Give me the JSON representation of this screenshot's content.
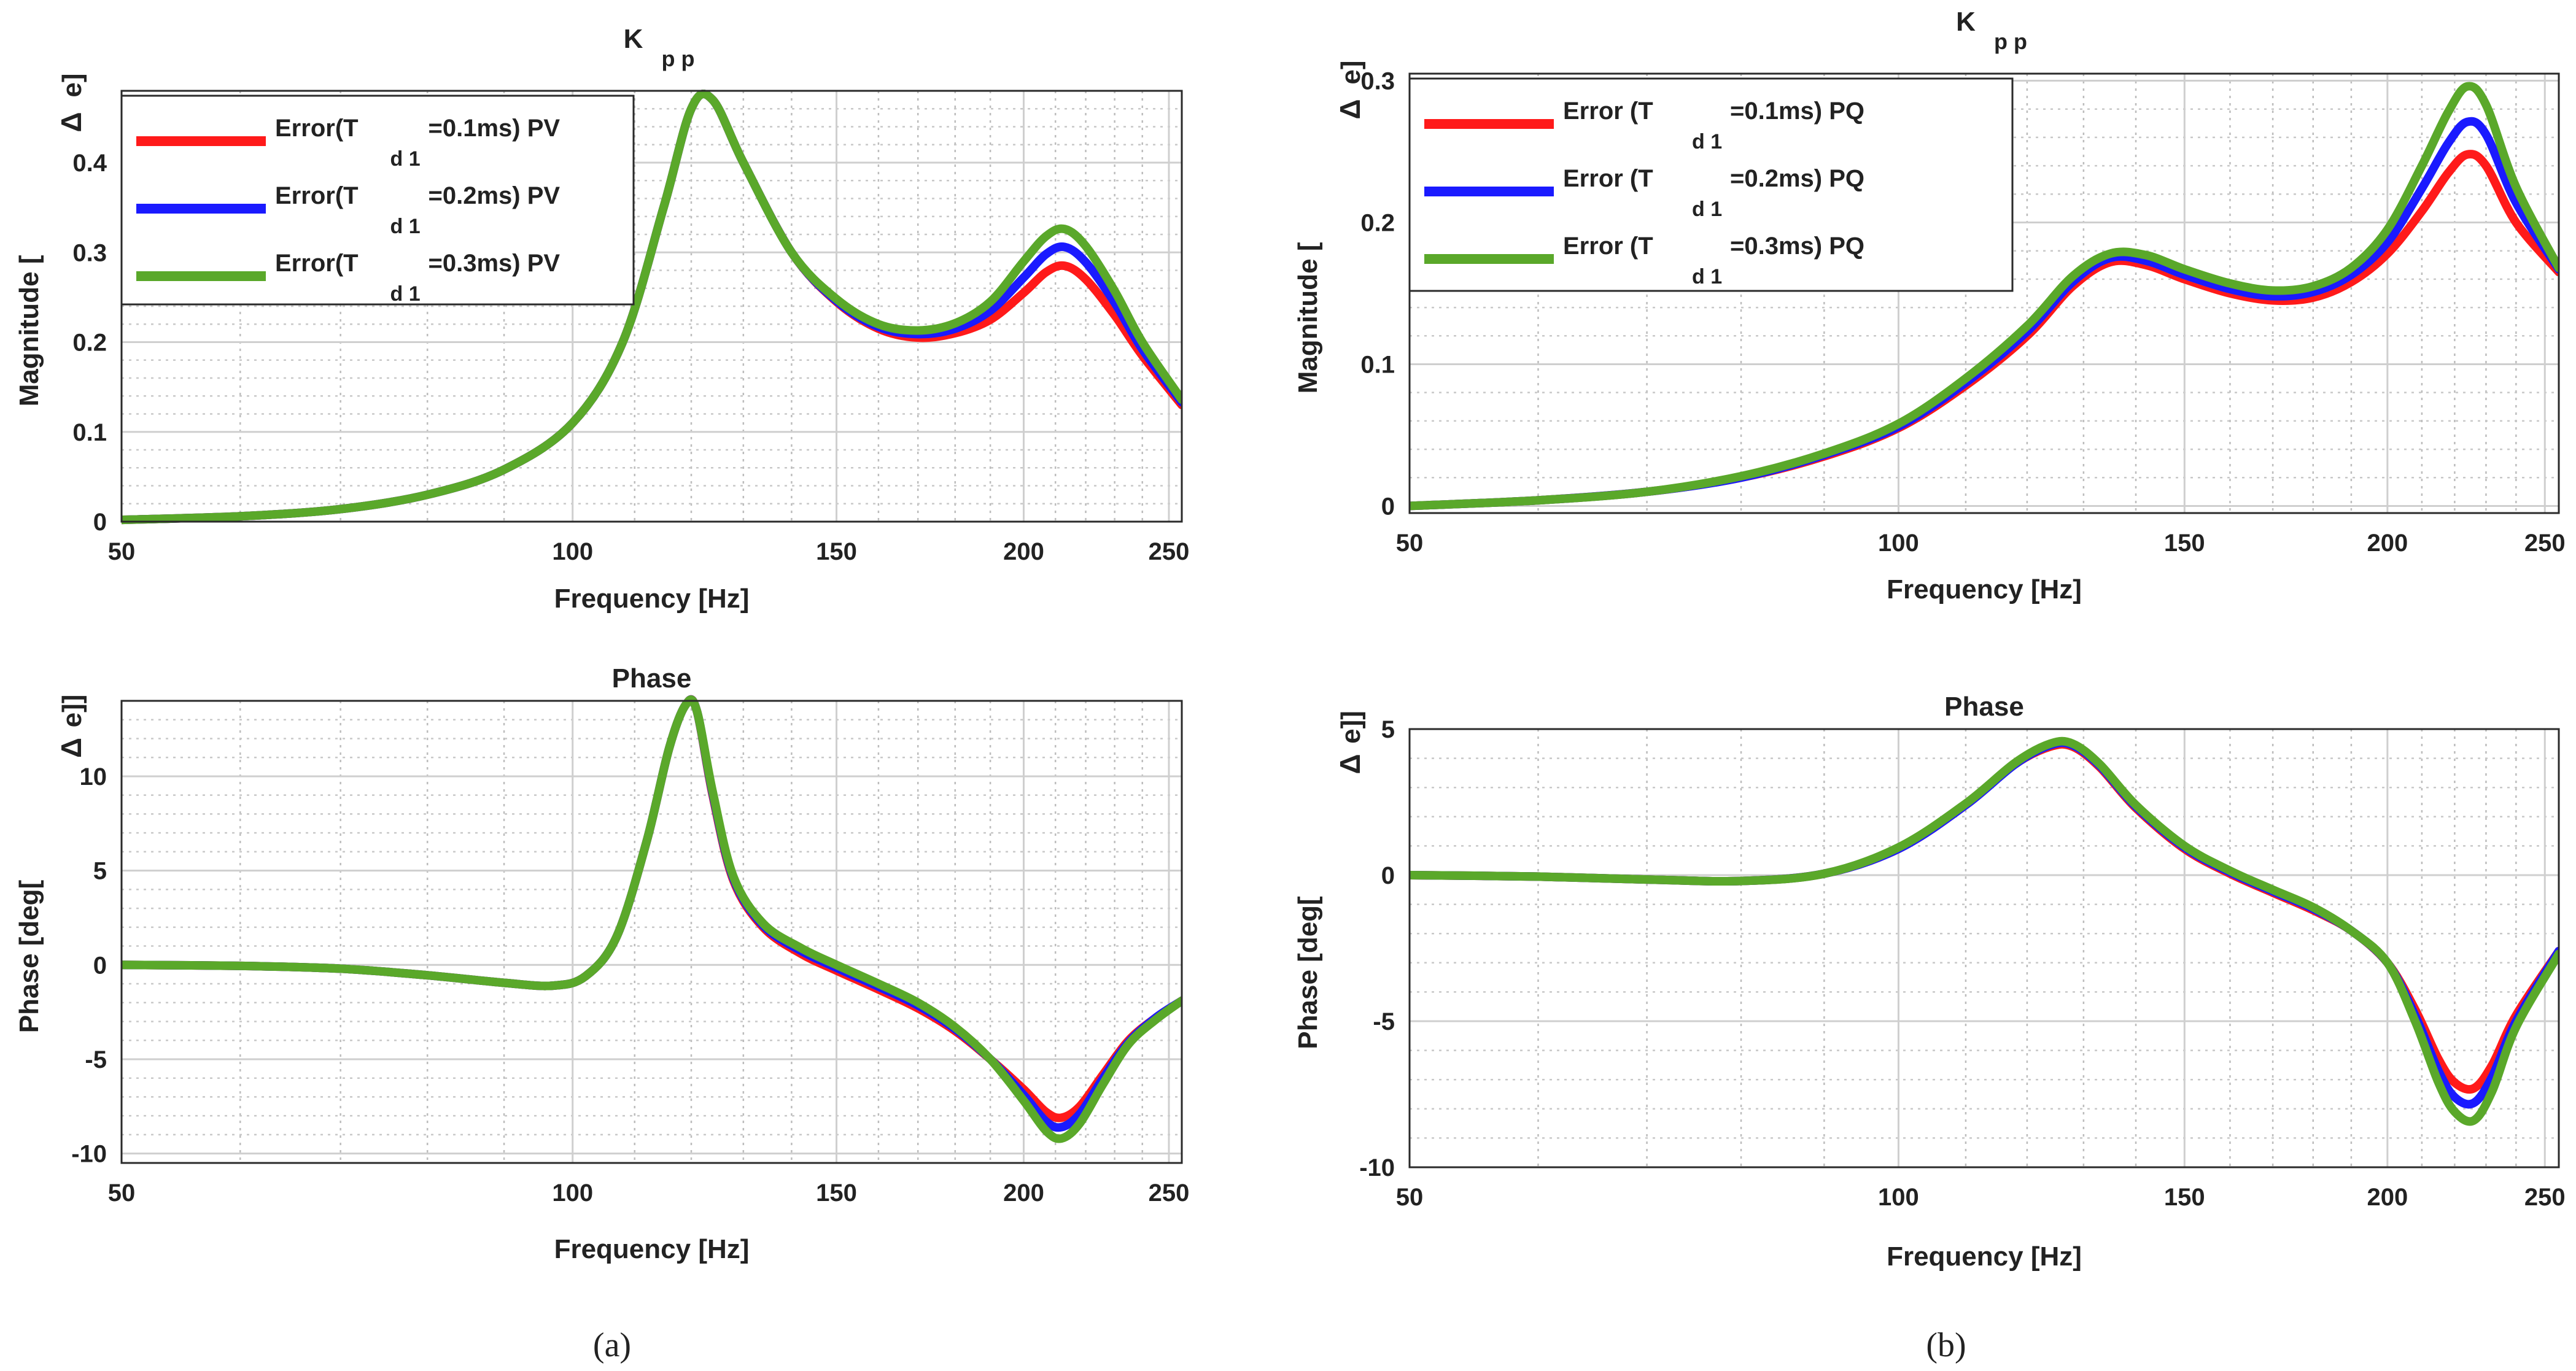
{
  "colors": {
    "series": [
      "#ff1a1a",
      "#1a1aff",
      "#5aa82a"
    ],
    "grid": "#bfbfbf",
    "axis": "#222222"
  },
  "chart_data": [
    {
      "id": "a-mag",
      "panel": "(a)",
      "type": "line",
      "title": "K",
      "title_sub": "p p",
      "xlabel": "Frequency [Hz]",
      "ylabel": "Magnitude [",
      "ylabel_delta": "Δ",
      "ylabel_tail": "e]",
      "xscale": "log",
      "xlim": [
        50,
        255
      ],
      "ylim": [
        0,
        0.48
      ],
      "xticks": [
        50,
        100,
        150,
        200,
        250
      ],
      "yticks": [
        0,
        0.1,
        0.2,
        0.3,
        0.4
      ],
      "legend": {
        "position": "top-left",
        "items": [
          {
            "pre": "Error(T",
            "sub": "d 1",
            "post": "=0.1ms) PV"
          },
          {
            "pre": "Error(T",
            "sub": "d 1",
            "post": "=0.2ms) PV"
          },
          {
            "pre": "Error(T",
            "sub": "d 1",
            "post": "=0.3ms) PV"
          }
        ]
      },
      "x": [
        50,
        60,
        70,
        80,
        90,
        100,
        108,
        115,
        120,
        124,
        130,
        140,
        150,
        160,
        170,
        180,
        190,
        200,
        207,
        213,
        220,
        230,
        240,
        255
      ],
      "series": [
        {
          "name": "Error(Td1=0.1ms) PV",
          "values": [
            0.002,
            0.006,
            0.014,
            0.03,
            0.058,
            0.11,
            0.2,
            0.35,
            0.46,
            0.47,
            0.4,
            0.3,
            0.245,
            0.215,
            0.205,
            0.21,
            0.225,
            0.255,
            0.278,
            0.285,
            0.27,
            0.23,
            0.185,
            0.13
          ]
        },
        {
          "name": "Error(Td1=0.2ms) PV",
          "values": [
            0.002,
            0.006,
            0.014,
            0.03,
            0.058,
            0.11,
            0.2,
            0.35,
            0.46,
            0.47,
            0.4,
            0.3,
            0.246,
            0.217,
            0.209,
            0.215,
            0.235,
            0.272,
            0.298,
            0.306,
            0.289,
            0.244,
            0.192,
            0.133
          ]
        },
        {
          "name": "Error(Td1=0.3ms) PV",
          "values": [
            0.002,
            0.006,
            0.014,
            0.03,
            0.058,
            0.11,
            0.2,
            0.35,
            0.46,
            0.47,
            0.4,
            0.3,
            0.248,
            0.22,
            0.213,
            0.221,
            0.245,
            0.29,
            0.318,
            0.326,
            0.307,
            0.257,
            0.2,
            0.136
          ]
        }
      ]
    },
    {
      "id": "a-phase",
      "panel": "(a)",
      "type": "line",
      "title": "Phase",
      "xlabel": "Frequency [Hz]",
      "ylabel": "Phase [deg[",
      "ylabel_delta": "Δ",
      "ylabel_tail": "e]]",
      "xscale": "log",
      "xlim": [
        50,
        255
      ],
      "ylim": [
        -10.5,
        14
      ],
      "xticks": [
        50,
        100,
        150,
        200,
        250
      ],
      "yticks": [
        -10,
        -5,
        0,
        5,
        10
      ],
      "x": [
        50,
        60,
        70,
        80,
        90,
        97,
        102,
        107,
        112,
        116,
        119,
        121,
        124,
        128,
        134,
        142,
        150,
        160,
        170,
        180,
        190,
        200,
        207,
        212,
        218,
        226,
        235,
        245,
        255
      ],
      "series": [
        {
          "name": "Error(Td1=0.1ms) PV",
          "values": [
            0,
            -0.05,
            -0.2,
            -0.55,
            -0.95,
            -1.1,
            -0.6,
            1.5,
            6.5,
            11.5,
            13.8,
            13.5,
            9.0,
            4.5,
            2.0,
            0.6,
            -0.3,
            -1.3,
            -2.3,
            -3.5,
            -5.0,
            -6.6,
            -7.8,
            -8.1,
            -7.5,
            -5.8,
            -4.0,
            -2.8,
            -1.9
          ]
        },
        {
          "name": "Error(Td1=0.2ms) PV",
          "values": [
            0,
            -0.05,
            -0.2,
            -0.55,
            -0.95,
            -1.1,
            -0.6,
            1.5,
            6.5,
            11.5,
            13.8,
            13.5,
            9.1,
            4.6,
            2.1,
            0.75,
            -0.15,
            -1.15,
            -2.15,
            -3.4,
            -5.0,
            -6.9,
            -8.3,
            -8.6,
            -7.9,
            -6.0,
            -4.1,
            -2.8,
            -1.9
          ]
        },
        {
          "name": "Error(Td1=0.3ms) PV",
          "values": [
            0,
            -0.05,
            -0.2,
            -0.55,
            -0.95,
            -1.1,
            -0.6,
            1.5,
            6.5,
            11.5,
            13.8,
            13.5,
            9.2,
            4.7,
            2.2,
            0.9,
            0.0,
            -1.0,
            -2.0,
            -3.3,
            -5.0,
            -7.2,
            -8.8,
            -9.2,
            -8.4,
            -6.3,
            -4.2,
            -2.9,
            -1.9
          ]
        }
      ]
    },
    {
      "id": "b-mag",
      "panel": "(b)",
      "type": "line",
      "title": "K",
      "title_sub": "p p",
      "xlabel": "Frequency [Hz]",
      "ylabel": "Magnitude [",
      "ylabel_delta": "Δ",
      "ylabel_tail": "e]",
      "xscale": "log",
      "xlim": [
        50,
        255
      ],
      "ylim": [
        -0.005,
        0.305
      ],
      "xticks": [
        50,
        100,
        150,
        200,
        250
      ],
      "yticks": [
        0,
        0.1,
        0.2,
        0.3
      ],
      "legend": {
        "position": "top-left",
        "items": [
          {
            "pre": "Error (T",
            "sub": "d 1",
            "post": "=0.1ms) PQ"
          },
          {
            "pre": "Error (T",
            "sub": "d 1",
            "post": "=0.2ms) PQ"
          },
          {
            "pre": "Error (T",
            "sub": "d 1",
            "post": "=0.3ms) PQ"
          }
        ]
      },
      "x": [
        50,
        60,
        70,
        80,
        90,
        100,
        110,
        120,
        128,
        135,
        142,
        150,
        160,
        170,
        180,
        190,
        200,
        210,
        218,
        224,
        230,
        240,
        255
      ],
      "series": [
        {
          "name": "Error (Td1=0.1ms) PQ",
          "values": [
            0.0,
            0.004,
            0.01,
            0.02,
            0.035,
            0.055,
            0.085,
            0.12,
            0.155,
            0.172,
            0.17,
            0.16,
            0.15,
            0.145,
            0.147,
            0.158,
            0.178,
            0.208,
            0.235,
            0.248,
            0.24,
            0.2,
            0.165
          ]
        },
        {
          "name": "Error (Td1=0.2ms) PQ",
          "values": [
            0.0,
            0.004,
            0.01,
            0.02,
            0.036,
            0.056,
            0.087,
            0.123,
            0.158,
            0.175,
            0.173,
            0.163,
            0.153,
            0.148,
            0.151,
            0.163,
            0.186,
            0.224,
            0.256,
            0.271,
            0.262,
            0.214,
            0.167
          ]
        },
        {
          "name": "Error (Td1=0.3ms) PQ",
          "values": [
            0.0,
            0.004,
            0.01,
            0.021,
            0.037,
            0.058,
            0.09,
            0.127,
            0.162,
            0.178,
            0.177,
            0.167,
            0.157,
            0.152,
            0.155,
            0.168,
            0.195,
            0.24,
            0.278,
            0.296,
            0.283,
            0.225,
            0.168
          ]
        }
      ]
    },
    {
      "id": "b-phase",
      "panel": "(b)",
      "type": "line",
      "title": "Phase",
      "xlabel": "Frequency [Hz]",
      "ylabel": "Phase [deg[",
      "ylabel_delta": "Δ",
      "ylabel_tail": "e]]",
      "xscale": "log",
      "xlim": [
        50,
        255
      ],
      "ylim": [
        -10,
        5
      ],
      "xticks": [
        50,
        100,
        150,
        200,
        250
      ],
      "yticks": [
        -10,
        -5,
        0,
        5
      ],
      "x": [
        50,
        60,
        70,
        80,
        90,
        100,
        110,
        118,
        124,
        128,
        133,
        140,
        150,
        160,
        170,
        180,
        190,
        200,
        208,
        215,
        220,
        226,
        232,
        240,
        255
      ],
      "series": [
        {
          "name": "Error (Td1=0.1ms) PQ",
          "values": [
            0,
            -0.05,
            -0.15,
            -0.2,
            0.05,
            0.9,
            2.4,
            3.8,
            4.4,
            4.4,
            3.7,
            2.3,
            0.9,
            0.05,
            -0.6,
            -1.2,
            -1.9,
            -3.0,
            -4.6,
            -6.3,
            -7.1,
            -7.3,
            -6.5,
            -4.8,
            -2.6
          ]
        },
        {
          "name": "Error (Td1=0.2ms) PQ",
          "values": [
            0,
            -0.05,
            -0.15,
            -0.2,
            0.05,
            0.9,
            2.4,
            3.8,
            4.45,
            4.45,
            3.75,
            2.35,
            0.95,
            0.1,
            -0.55,
            -1.15,
            -1.9,
            -3.0,
            -4.8,
            -6.7,
            -7.6,
            -7.8,
            -6.9,
            -5.0,
            -2.6
          ]
        },
        {
          "name": "Error (Td1=0.3ms) PQ",
          "values": [
            0,
            -0.05,
            -0.15,
            -0.2,
            0.05,
            0.95,
            2.45,
            3.85,
            4.5,
            4.5,
            3.8,
            2.4,
            1.0,
            0.15,
            -0.5,
            -1.1,
            -1.9,
            -3.0,
            -5.0,
            -7.1,
            -8.1,
            -8.4,
            -7.4,
            -5.2,
            -2.7
          ]
        }
      ]
    }
  ],
  "captions": [
    "(a)",
    "(b)"
  ]
}
